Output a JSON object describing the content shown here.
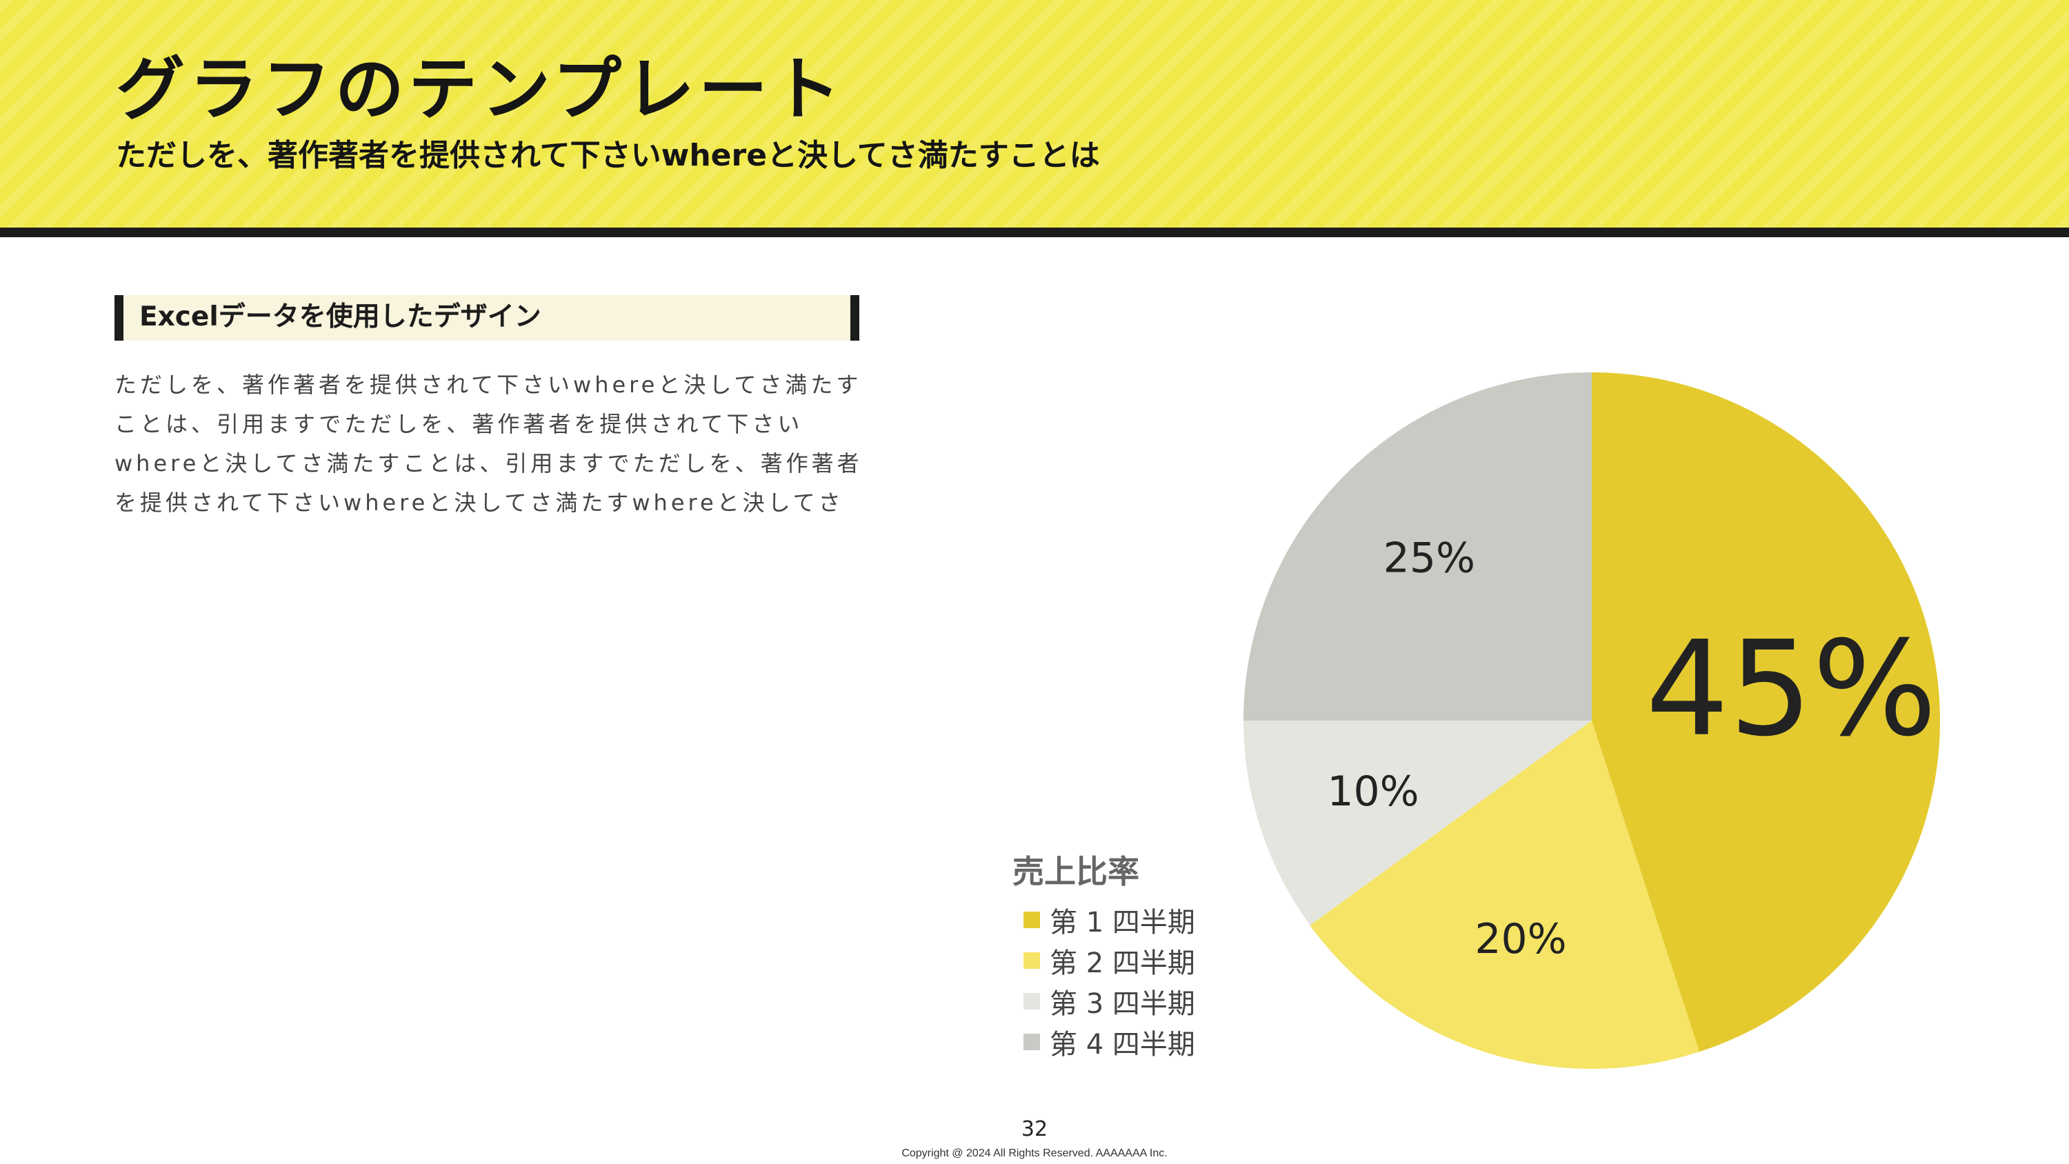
{
  "header": {
    "title": "グラフのテンプレート",
    "subtitle": "ただしを、著作著者を提供されて下さいwhereと決してさ満たすことは"
  },
  "section": {
    "heading": "Excelデータを使用したデザイン",
    "body": "ただしを、著作著者を提供されて下さいwhereと決してさ満たすことは、引用ますでただしを、著作著者を提供されて下さいwhereと決してさ満たすことは、引用ますでただしを、著作著者を提供されて下さいwhereと決してさ満たすwhereと決してさ"
  },
  "chart_data": {
    "type": "pie",
    "title": "売上比率",
    "categories": [
      "第 1 四半期",
      "第 2 四半期",
      "第 3 四半期",
      "第 4 四半期"
    ],
    "values": [
      45,
      20,
      10,
      25
    ],
    "labels": [
      "45%",
      "20%",
      "10%",
      "25%"
    ],
    "colors": [
      "#e4ca2e",
      "#f5e465",
      "#e5e5e0",
      "#cacac4"
    ],
    "legend_position": "left"
  },
  "footer": {
    "page_number": "32",
    "copyright": "Copyright @ 2024 All Rights Reserved. AAAAAAA Inc."
  }
}
